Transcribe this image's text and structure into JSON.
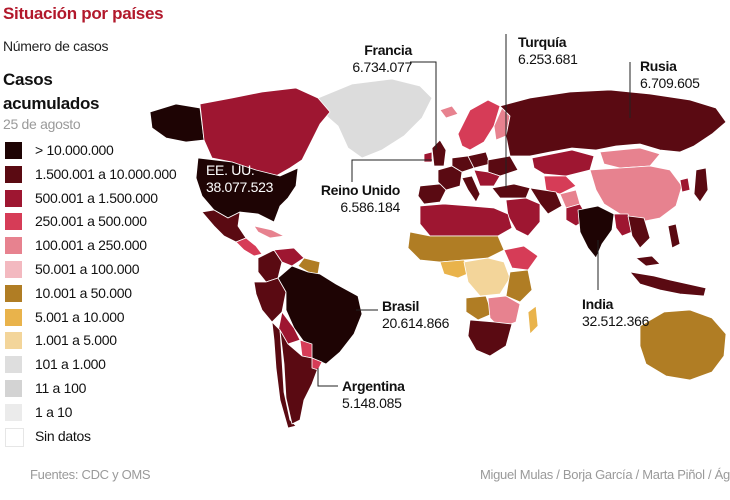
{
  "header": {
    "title": "Situación por países",
    "subtitle": "Número de casos"
  },
  "legend": {
    "title": "Casos acumulados",
    "date": "25 de agosto",
    "items": [
      {
        "label": "> 10.000.000",
        "color": "#1e0404"
      },
      {
        "label": "1.500.001 a 10.000.000",
        "color": "#5a0a12"
      },
      {
        "label": "500.001 a 1.500.000",
        "color": "#9e1631"
      },
      {
        "label": "250.001 a 500.000",
        "color": "#d63c57"
      },
      {
        "label": "100.001 a 250.000",
        "color": "#e7828f"
      },
      {
        "label": "50.001 a 100.000",
        "color": "#f3b9c0"
      },
      {
        "label": "10.001 a 50.000",
        "color": "#b07d24"
      },
      {
        "label": "5.001 a 10.000",
        "color": "#e9b34b"
      },
      {
        "label": "1.001 a 5.000",
        "color": "#f3d59a"
      },
      {
        "label": "101 a 1.000",
        "color": "#dedede"
      },
      {
        "label": "11 a 100",
        "color": "#d3d3d3"
      },
      {
        "label": "1 a 10",
        "color": "#ebebeb"
      },
      {
        "label": "Sin datos",
        "color": "#ffffff"
      }
    ]
  },
  "callouts": {
    "usa": {
      "name": "EE. UU.",
      "value": "38.077.523"
    },
    "francia": {
      "name": "Francia",
      "value": "6.734.077"
    },
    "turquia": {
      "name": "Turquía",
      "value": "6.253.681"
    },
    "rusia": {
      "name": "Rusia",
      "value": "6.709.605"
    },
    "reino_unido": {
      "name": "Reino Unido",
      "value": "6.586.184"
    },
    "brasil": {
      "name": "Brasil",
      "value": "20.614.866"
    },
    "india": {
      "name": "India",
      "value": "32.512.366"
    },
    "argentina": {
      "name": "Argentina",
      "value": "5.148.085"
    }
  },
  "footer": {
    "sources": "Fuentes: CDC y OMS",
    "credits": "Miguel Mulas / Borja García / Marta Piñol / Ágatha"
  }
}
